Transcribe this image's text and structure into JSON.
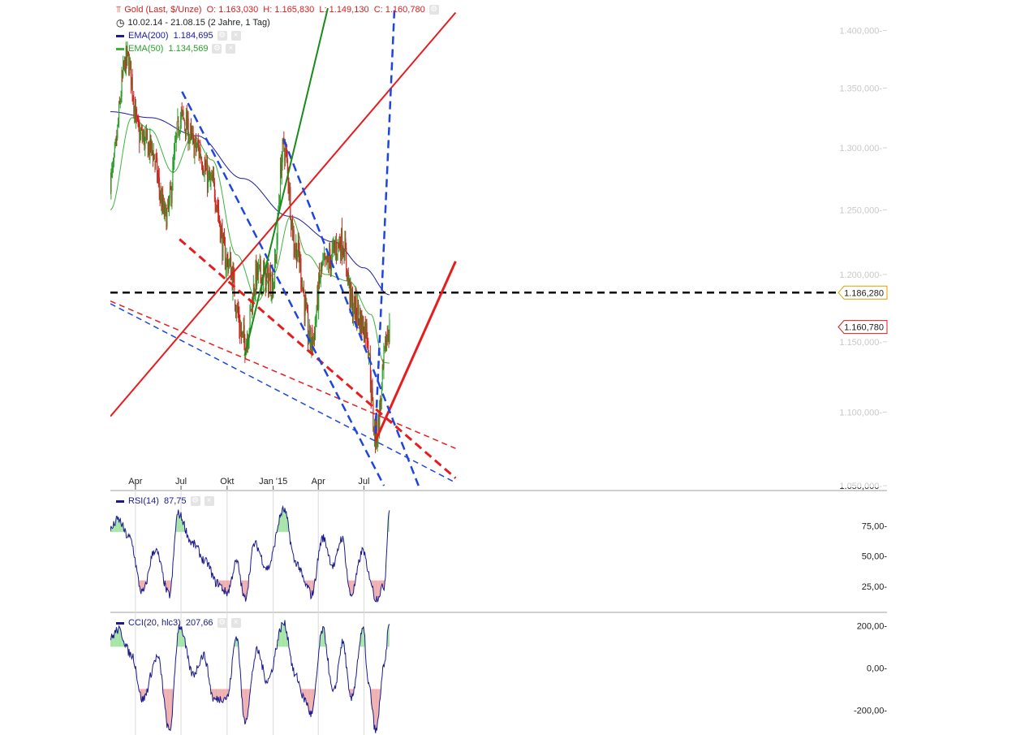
{
  "header": {
    "instrument": "Gold (Last, $/Unze)",
    "ohlc": "O: 1.163,030  H: 1.165,830  L: 1.149,130  C: 1.160,780",
    "range": "10.02.14 - 21.08.15 (2 Jahre, 1 Tag)",
    "ema200": "EMA(200)  1.184,695",
    "ema50": "EMA(50)  1.134,569",
    "rsi": "RSI(14)  87,75",
    "cci": "CCI(20, hlc3)  207,66"
  },
  "colors": {
    "up": "#2aa02a",
    "down": "#d42020",
    "ema200": "#1a1aa0",
    "ema50": "#3cb43c",
    "red_line": "#e81c1c",
    "blue_line": "#1e46dc",
    "green_line": "#1a8a1a",
    "black_line": "#000000",
    "osc_line": "#1a1a8c",
    "overbought_fill": "#9fe3a0",
    "oversold_fill": "#eeaaaa"
  },
  "chart_data": [
    {
      "type": "candlestick",
      "title": "Gold (Last, $/Unze)",
      "x_ticks": [
        "Apr",
        "Jul",
        "Okt",
        "Jan '15",
        "Apr",
        "Jul"
      ],
      "y_ticks": [
        "1.050,000",
        "1.100,000",
        "1.150,000",
        "1.200,000",
        "1.250,000",
        "1.300,000",
        "1.350,000",
        "1.400,000"
      ],
      "ylim": [
        1050,
        1420
      ],
      "price_labels": [
        "1.186,280",
        "1.160,780"
      ],
      "horizontal_line": 1186.28,
      "last_close": 1160.78,
      "trend_anchors": [
        {
          "date": "2014-02-10",
          "close": 1275
        },
        {
          "date": "2014-03-15",
          "close": 1375
        },
        {
          "date": "2014-04-10",
          "close": 1310
        },
        {
          "date": "2014-05-01",
          "close": 1300
        },
        {
          "date": "2014-06-01",
          "close": 1245
        },
        {
          "date": "2014-07-01",
          "close": 1325
        },
        {
          "date": "2014-08-01",
          "close": 1300
        },
        {
          "date": "2014-09-01",
          "close": 1270
        },
        {
          "date": "2014-10-01",
          "close": 1210
        },
        {
          "date": "2014-11-05",
          "close": 1150
        },
        {
          "date": "2014-12-01",
          "close": 1200
        },
        {
          "date": "2014-12-31",
          "close": 1195
        },
        {
          "date": "2015-01-22",
          "close": 1300
        },
        {
          "date": "2015-02-15",
          "close": 1220
        },
        {
          "date": "2015-03-18",
          "close": 1150
        },
        {
          "date": "2015-04-10",
          "close": 1205
        },
        {
          "date": "2015-05-18",
          "close": 1225
        },
        {
          "date": "2015-06-10",
          "close": 1175
        },
        {
          "date": "2015-07-05",
          "close": 1160
        },
        {
          "date": "2015-07-24",
          "close": 1085
        },
        {
          "date": "2015-08-21",
          "close": 1160
        }
      ],
      "ema200_anchors": [
        {
          "date": "2014-02-10",
          "value": 1330
        },
        {
          "date": "2014-05-01",
          "value": 1325
        },
        {
          "date": "2014-08-01",
          "value": 1310
        },
        {
          "date": "2014-11-01",
          "value": 1275
        },
        {
          "date": "2015-02-01",
          "value": 1245
        },
        {
          "date": "2015-05-01",
          "value": 1225
        },
        {
          "date": "2015-07-01",
          "value": 1205
        },
        {
          "date": "2015-08-21",
          "value": 1184.7
        }
      ],
      "ema50_anchors": [
        {
          "date": "2014-02-10",
          "value": 1250
        },
        {
          "date": "2014-03-25",
          "value": 1325
        },
        {
          "date": "2014-05-01",
          "value": 1315
        },
        {
          "date": "2014-06-15",
          "value": 1280
        },
        {
          "date": "2014-07-25",
          "value": 1310
        },
        {
          "date": "2014-09-01",
          "value": 1290
        },
        {
          "date": "2014-10-20",
          "value": 1215
        },
        {
          "date": "2014-12-01",
          "value": 1180
        },
        {
          "date": "2015-01-01",
          "value": 1200
        },
        {
          "date": "2015-02-05",
          "value": 1245
        },
        {
          "date": "2015-03-10",
          "value": 1215
        },
        {
          "date": "2015-04-15",
          "value": 1200
        },
        {
          "date": "2015-06-01",
          "value": 1195
        },
        {
          "date": "2015-07-15",
          "value": 1170
        },
        {
          "date": "2015-08-10",
          "value": 1135
        },
        {
          "date": "2015-08-21",
          "value": 1134.6
        }
      ]
    },
    {
      "type": "line",
      "title": "RSI(14)",
      "y_ticks": [
        "25,00",
        "50,00",
        "75,00"
      ],
      "ylim": [
        5,
        100
      ],
      "thresholds": [
        30,
        70
      ],
      "last_value": 87.75,
      "anchors": [
        {
          "date": "2014-02-10",
          "value": 72
        },
        {
          "date": "2014-02-25",
          "value": 80
        },
        {
          "date": "2014-03-20",
          "value": 65
        },
        {
          "date": "2014-04-15",
          "value": 20
        },
        {
          "date": "2014-05-10",
          "value": 55
        },
        {
          "date": "2014-06-08",
          "value": 18
        },
        {
          "date": "2014-06-25",
          "value": 85
        },
        {
          "date": "2014-07-25",
          "value": 60
        },
        {
          "date": "2014-08-20",
          "value": 45
        },
        {
          "date": "2014-09-10",
          "value": 28
        },
        {
          "date": "2014-10-01",
          "value": 20
        },
        {
          "date": "2014-10-20",
          "value": 45
        },
        {
          "date": "2014-11-05",
          "value": 15
        },
        {
          "date": "2014-11-25",
          "value": 60
        },
        {
          "date": "2014-12-20",
          "value": 40
        },
        {
          "date": "2015-01-22",
          "value": 88
        },
        {
          "date": "2015-02-15",
          "value": 45
        },
        {
          "date": "2015-03-10",
          "value": 25
        },
        {
          "date": "2015-03-18",
          "value": 18
        },
        {
          "date": "2015-04-10",
          "value": 65
        },
        {
          "date": "2015-05-01",
          "value": 42
        },
        {
          "date": "2015-05-18",
          "value": 65
        },
        {
          "date": "2015-06-05",
          "value": 18
        },
        {
          "date": "2015-06-30",
          "value": 55
        },
        {
          "date": "2015-07-10",
          "value": 35
        },
        {
          "date": "2015-07-25",
          "value": 15
        },
        {
          "date": "2015-08-10",
          "value": 25
        },
        {
          "date": "2015-08-21",
          "value": 87.75
        }
      ]
    },
    {
      "type": "line",
      "title": "CCI(20, hlc3)",
      "y_ticks": [
        "-200,00",
        "0,00",
        "200,00"
      ],
      "ylim": [
        -310,
        240
      ],
      "thresholds": [
        -100,
        100
      ],
      "last_value": 207.66,
      "anchors": [
        {
          "date": "2014-02-10",
          "value": 140
        },
        {
          "date": "2014-02-25",
          "value": 180
        },
        {
          "date": "2014-03-25",
          "value": 60
        },
        {
          "date": "2014-04-15",
          "value": -150
        },
        {
          "date": "2014-05-15",
          "value": 50
        },
        {
          "date": "2014-06-08",
          "value": -300
        },
        {
          "date": "2014-06-28",
          "value": 200
        },
        {
          "date": "2014-07-25",
          "value": -30
        },
        {
          "date": "2014-08-15",
          "value": 60
        },
        {
          "date": "2014-09-05",
          "value": -150
        },
        {
          "date": "2014-10-01",
          "value": -140
        },
        {
          "date": "2014-10-20",
          "value": 150
        },
        {
          "date": "2014-11-05",
          "value": -250
        },
        {
          "date": "2014-11-30",
          "value": 80
        },
        {
          "date": "2014-12-20",
          "value": -60
        },
        {
          "date": "2015-01-22",
          "value": 210
        },
        {
          "date": "2015-02-15",
          "value": -40
        },
        {
          "date": "2015-03-05",
          "value": -150
        },
        {
          "date": "2015-03-18",
          "value": -220
        },
        {
          "date": "2015-04-10",
          "value": 180
        },
        {
          "date": "2015-05-01",
          "value": -120
        },
        {
          "date": "2015-05-20",
          "value": 120
        },
        {
          "date": "2015-06-05",
          "value": -150
        },
        {
          "date": "2015-06-30",
          "value": 180
        },
        {
          "date": "2015-07-10",
          "value": -80
        },
        {
          "date": "2015-07-25",
          "value": -300
        },
        {
          "date": "2015-08-10",
          "value": 0
        },
        {
          "date": "2015-08-21",
          "value": 207.66
        }
      ]
    }
  ],
  "drawings": [
    {
      "name": "trend-red-long",
      "style": "solid",
      "color": "red",
      "width": 2,
      "points": [
        [
          "2014-02-10",
          1097
        ],
        [
          "2015-12-31",
          1416
        ]
      ]
    },
    {
      "name": "trend-red-support",
      "style": "solid",
      "color": "red",
      "width": 3,
      "points": [
        [
          "2015-07-24",
          1080
        ],
        [
          "2015-12-31",
          1210
        ]
      ]
    },
    {
      "name": "trend-red-upper-dashed",
      "style": "dash",
      "color": "red",
      "width": 3,
      "points": [
        [
          "2014-06-28",
          1227
        ],
        [
          "2015-12-31",
          1055
        ]
      ]
    },
    {
      "name": "trend-red-lower-dashed",
      "style": "dash",
      "color": "red",
      "width": 1.5,
      "points": [
        [
          "2014-02-10",
          1180
        ],
        [
          "2015-12-31",
          1075
        ]
      ]
    },
    {
      "name": "trend-blue-lower-dashed",
      "style": "dash",
      "color": "blue",
      "width": 1.5,
      "points": [
        [
          "2014-02-10",
          1178
        ],
        [
          "2015-12-31",
          1052
        ]
      ]
    },
    {
      "name": "channel-blue-1",
      "style": "dash",
      "color": "blue",
      "width": 2.5,
      "points": [
        [
          "2014-07-03",
          1347
        ],
        [
          "2015-08-10",
          1050
        ]
      ]
    },
    {
      "name": "channel-blue-2",
      "style": "dash",
      "color": "blue",
      "width": 2.5,
      "points": [
        [
          "2015-01-22",
          1307
        ],
        [
          "2015-10-18",
          1050
        ]
      ]
    },
    {
      "name": "trend-blue-steep",
      "style": "dash",
      "color": "blue",
      "width": 2.5,
      "points": [
        [
          "2015-07-24",
          1085
        ],
        [
          "2015-08-31",
          1420
        ]
      ]
    },
    {
      "name": "trend-green-steep",
      "style": "solid",
      "color": "green",
      "width": 2,
      "points": [
        [
          "2014-11-05",
          1140
        ],
        [
          "2015-04-20",
          1420
        ]
      ]
    }
  ]
}
